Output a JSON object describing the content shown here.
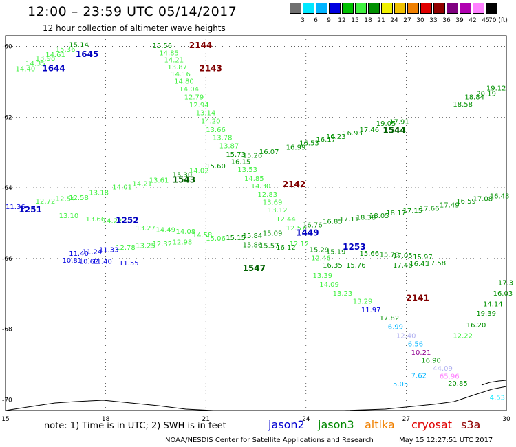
{
  "title": "12:00 – 23:59 UTC 05/14/2017",
  "subtitle": "12 hour collection of altimeter wave heights",
  "legend": {
    "colors": [
      "#707070",
      "#00e8ff",
      "#00b4ff",
      "#0000e0",
      "#00c000",
      "#40f040",
      "#009000",
      "#f0f000",
      "#f0c000",
      "#f08000",
      "#e00000",
      "#900000",
      "#800080",
      "#b000b0",
      "#ff80ff",
      "#000000"
    ],
    "labels": [
      "3",
      "6",
      "9",
      "12",
      "15",
      "18",
      "21",
      "24",
      "27",
      "30",
      "33",
      "36",
      "39",
      "42",
      "45",
      "70 (ft)"
    ]
  },
  "axes": {
    "lat_labels": [
      "-60",
      "-62",
      "-64",
      "-66",
      "-68",
      "-70"
    ],
    "lon_labels": [
      "15",
      "18",
      "21",
      "24",
      "27",
      "30"
    ]
  },
  "note": "note: 1) Time is in UTC; 2) SWH is in feet",
  "satellites": [
    {
      "name": "jason2",
      "color": "#0000d0"
    },
    {
      "name": "jason3",
      "color": "#008800"
    },
    {
      "name": "altika",
      "color": "#f08000"
    },
    {
      "name": "cryosat",
      "color": "#e00000"
    },
    {
      "name": "s3a",
      "color": "#900000"
    }
  ],
  "credit": "NOAA/NESDIS Center for Satellite Applications and Research",
  "credit_date": "May 15 12:27:51 UTC 2017",
  "pass_labels": [
    {
      "text": "1645",
      "lon": 17.1,
      "lat": -60.3,
      "color": "#0000c0"
    },
    {
      "text": "1644",
      "lon": 16.1,
      "lat": -60.7,
      "color": "#0000c0"
    },
    {
      "text": "2144",
      "lon": 20.5,
      "lat": -60.05,
      "color": "#800000"
    },
    {
      "text": "2143",
      "lon": 20.8,
      "lat": -60.7,
      "color": "#800000"
    },
    {
      "text": "1544",
      "lon": 26.3,
      "lat": -62.45,
      "color": "#006000"
    },
    {
      "text": "1543",
      "lon": 20.0,
      "lat": -63.85,
      "color": "#006000"
    },
    {
      "text": "2142",
      "lon": 23.3,
      "lat": -63.98,
      "color": "#800000"
    },
    {
      "text": "1251",
      "lon": 15.4,
      "lat": -64.7,
      "color": "#0000c0"
    },
    {
      "text": "1252",
      "lon": 18.3,
      "lat": -65.0,
      "color": "#0000c0"
    },
    {
      "text": "1449",
      "lon": 23.7,
      "lat": -65.35,
      "color": "#0000c0"
    },
    {
      "text": "1253",
      "lon": 25.1,
      "lat": -65.75,
      "color": "#0000c0"
    },
    {
      "text": "1547",
      "lon": 22.1,
      "lat": -66.35,
      "color": "#006000"
    },
    {
      "text": "2141",
      "lon": 27.0,
      "lat": -67.2,
      "color": "#800000"
    }
  ],
  "swh_values": [
    {
      "text": "15.14",
      "lon": 16.9,
      "lat": -60.02,
      "color": "#009000"
    },
    {
      "text": "15.36",
      "lon": 16.5,
      "lat": -60.15,
      "color": "#40f040"
    },
    {
      "text": "14.61",
      "lon": 16.2,
      "lat": -60.3,
      "color": "#40f040"
    },
    {
      "text": "13.98",
      "lon": 15.9,
      "lat": -60.4,
      "color": "#40f040"
    },
    {
      "text": "14.35",
      "lon": 15.6,
      "lat": -60.55,
      "color": "#40f040"
    },
    {
      "text": "14.40",
      "lon": 15.3,
      "lat": -60.7,
      "color": "#40f040"
    },
    {
      "text": "15.56",
      "lon": 19.4,
      "lat": -60.05,
      "color": "#009000"
    },
    {
      "text": "14.85",
      "lon": 19.6,
      "lat": -60.25,
      "color": "#40f040"
    },
    {
      "text": "14.21",
      "lon": 19.75,
      "lat": -60.45,
      "color": "#40f040"
    },
    {
      "text": "13.87",
      "lon": 19.85,
      "lat": -60.65,
      "color": "#40f040"
    },
    {
      "text": "14.16",
      "lon": 19.95,
      "lat": -60.85,
      "color": "#40f040"
    },
    {
      "text": "14.80",
      "lon": 20.05,
      "lat": -61.05,
      "color": "#40f040"
    },
    {
      "text": "14.04",
      "lon": 20.2,
      "lat": -61.28,
      "color": "#40f040"
    },
    {
      "text": "12.79",
      "lon": 20.35,
      "lat": -61.5,
      "color": "#40f040"
    },
    {
      "text": "12.94",
      "lon": 20.5,
      "lat": -61.72,
      "color": "#40f040"
    },
    {
      "text": "13.14",
      "lon": 20.7,
      "lat": -61.95,
      "color": "#40f040"
    },
    {
      "text": "14.20",
      "lon": 20.85,
      "lat": -62.18,
      "color": "#40f040"
    },
    {
      "text": "13.66",
      "lon": 21.0,
      "lat": -62.42,
      "color": "#40f040"
    },
    {
      "text": "13.78",
      "lon": 21.2,
      "lat": -62.65,
      "color": "#40f040"
    },
    {
      "text": "13.87",
      "lon": 21.4,
      "lat": -62.88,
      "color": "#40f040"
    },
    {
      "text": "15.73",
      "lon": 21.6,
      "lat": -63.12,
      "color": "#009000"
    },
    {
      "text": "16.15",
      "lon": 21.75,
      "lat": -63.33,
      "color": "#009000"
    },
    {
      "text": "13.53",
      "lon": 21.95,
      "lat": -63.55,
      "color": "#40f040"
    },
    {
      "text": "14.85",
      "lon": 22.15,
      "lat": -63.8,
      "color": "#40f040"
    },
    {
      "text": "14.30",
      "lon": 22.35,
      "lat": -64.02,
      "color": "#40f040"
    },
    {
      "text": "12.83",
      "lon": 22.55,
      "lat": -64.25,
      "color": "#40f040"
    },
    {
      "text": "13.69",
      "lon": 22.7,
      "lat": -64.47,
      "color": "#40f040"
    },
    {
      "text": "13.12",
      "lon": 22.85,
      "lat": -64.7,
      "color": "#40f040"
    },
    {
      "text": "12.44",
      "lon": 23.1,
      "lat": -64.95,
      "color": "#40f040"
    },
    {
      "text": "12.57",
      "lon": 23.4,
      "lat": -65.2,
      "color": "#40f040"
    },
    {
      "text": "12.12",
      "lon": 23.5,
      "lat": -65.65,
      "color": "#40f040"
    },
    {
      "text": "12.46",
      "lon": 24.15,
      "lat": -66.05,
      "color": "#40f040"
    },
    {
      "text": "13.39",
      "lon": 24.2,
      "lat": -66.55,
      "color": "#40f040"
    },
    {
      "text": "14.09",
      "lon": 24.4,
      "lat": -66.8,
      "color": "#40f040"
    },
    {
      "text": "13.23",
      "lon": 24.8,
      "lat": -67.05,
      "color": "#40f040"
    },
    {
      "text": "13.29",
      "lon": 25.4,
      "lat": -67.28,
      "color": "#40f040"
    },
    {
      "text": "11.97",
      "lon": 25.65,
      "lat": -67.52,
      "color": "#0000e0"
    },
    {
      "text": "17.82",
      "lon": 26.2,
      "lat": -67.75,
      "color": "#009000"
    },
    {
      "text": "6.99",
      "lon": 26.45,
      "lat": -68.0,
      "color": "#00b4ff"
    },
    {
      "text": "12.40",
      "lon": 26.7,
      "lat": -68.25,
      "color": "#b0b0f0"
    },
    {
      "text": "6.56",
      "lon": 27.05,
      "lat": -68.48,
      "color": "#00b4ff"
    },
    {
      "text": "10.21",
      "lon": 27.15,
      "lat": -68.72,
      "color": "#900090"
    },
    {
      "text": "16.90",
      "lon": 27.45,
      "lat": -68.95,
      "color": "#009000"
    },
    {
      "text": "44.09",
      "lon": 27.8,
      "lat": -69.17,
      "color": "#b0b0f0"
    },
    {
      "text": "7.62",
      "lon": 27.15,
      "lat": -69.38,
      "color": "#00b4ff"
    },
    {
      "text": "65.96",
      "lon": 28.0,
      "lat": -69.4,
      "color": "#ff80ff"
    },
    {
      "text": "5.05",
      "lon": 26.6,
      "lat": -69.62,
      "color": "#00b4ff"
    },
    {
      "text": "20.85",
      "lon": 28.25,
      "lat": -69.6,
      "color": "#009000"
    },
    {
      "text": "4.53",
      "lon": 29.5,
      "lat": -70.0,
      "color": "#00e8ff"
    },
    {
      "text": "12.22",
      "lon": 28.4,
      "lat": -68.25,
      "color": "#40f040"
    },
    {
      "text": "16.20",
      "lon": 28.8,
      "lat": -67.95,
      "color": "#009000"
    },
    {
      "text": "19.39",
      "lon": 29.1,
      "lat": -67.62,
      "color": "#009000"
    },
    {
      "text": "14.14",
      "lon": 29.3,
      "lat": -67.35,
      "color": "#009000"
    },
    {
      "text": "16.03",
      "lon": 29.6,
      "lat": -67.05,
      "color": "#009000"
    },
    {
      "text": "17.3",
      "lon": 29.75,
      "lat": -66.75,
      "color": "#009000"
    },
    {
      "text": "17.91",
      "lon": 26.5,
      "lat": -62.2,
      "color": "#009000"
    },
    {
      "text": "18.58",
      "lon": 28.4,
      "lat": -61.7,
      "color": "#009000"
    },
    {
      "text": "18.84",
      "lon": 28.75,
      "lat": -61.5,
      "color": "#009000"
    },
    {
      "text": "20.19",
      "lon": 29.1,
      "lat": -61.4,
      "color": "#009000"
    },
    {
      "text": "19.12",
      "lon": 29.4,
      "lat": -61.25,
      "color": "#009000"
    },
    {
      "text": "16.99",
      "lon": 23.4,
      "lat": -62.92,
      "color": "#009000"
    },
    {
      "text": "16.53",
      "lon": 23.8,
      "lat": -62.8,
      "color": "#009000"
    },
    {
      "text": "16.17",
      "lon": 24.3,
      "lat": -62.7,
      "color": "#009000"
    },
    {
      "text": "16.23",
      "lon": 24.6,
      "lat": -62.62,
      "color": "#009000"
    },
    {
      "text": "16.93",
      "lon": 25.1,
      "lat": -62.52,
      "color": "#009000"
    },
    {
      "text": "17.46",
      "lon": 25.6,
      "lat": -62.42,
      "color": "#009000"
    },
    {
      "text": "19.05",
      "lon": 26.1,
      "lat": -62.25,
      "color": "#009000"
    },
    {
      "text": "16.07",
      "lon": 22.6,
      "lat": -63.05,
      "color": "#009000"
    },
    {
      "text": "15.26",
      "lon": 22.1,
      "lat": -63.15,
      "color": "#009000"
    },
    {
      "text": "15.60",
      "lon": 21.0,
      "lat": -63.45,
      "color": "#009000"
    },
    {
      "text": "15.30",
      "lon": 20.0,
      "lat": -63.7,
      "color": "#009000"
    },
    {
      "text": "14.02",
      "lon": 20.5,
      "lat": -63.58,
      "color": "#40f040"
    },
    {
      "text": "13.61",
      "lon": 19.3,
      "lat": -63.85,
      "color": "#40f040"
    },
    {
      "text": "14.21",
      "lon": 18.8,
      "lat": -63.95,
      "color": "#40f040"
    },
    {
      "text": "14.01",
      "lon": 18.2,
      "lat": -64.05,
      "color": "#40f040"
    },
    {
      "text": "13.18",
      "lon": 17.5,
      "lat": -64.2,
      "color": "#40f040"
    },
    {
      "text": "12.54",
      "lon": 16.5,
      "lat": -64.38,
      "color": "#40f040"
    },
    {
      "text": "12.58",
      "lon": 16.9,
      "lat": -64.35,
      "color": "#40f040"
    },
    {
      "text": "12.72",
      "lon": 15.9,
      "lat": -64.45,
      "color": "#40f040"
    },
    {
      "text": "11.36",
      "lon": 15.0,
      "lat": -64.6,
      "color": "#0000e0"
    },
    {
      "text": "13.10",
      "lon": 16.6,
      "lat": -64.85,
      "color": "#40f040"
    },
    {
      "text": "13.66",
      "lon": 17.4,
      "lat": -64.95,
      "color": "#40f040"
    },
    {
      "text": "14.22",
      "lon": 17.9,
      "lat": -65.0,
      "color": "#40f040"
    },
    {
      "text": "13.27",
      "lon": 18.9,
      "lat": -65.2,
      "color": "#40f040"
    },
    {
      "text": "14.49",
      "lon": 19.5,
      "lat": -65.25,
      "color": "#40f040"
    },
    {
      "text": "14.08",
      "lon": 20.1,
      "lat": -65.3,
      "color": "#40f040"
    },
    {
      "text": "14.58",
      "lon": 20.6,
      "lat": -65.4,
      "color": "#40f040"
    },
    {
      "text": "15.06",
      "lon": 21.0,
      "lat": -65.5,
      "color": "#40f040"
    },
    {
      "text": "15.15",
      "lon": 21.6,
      "lat": -65.48,
      "color": "#009000"
    },
    {
      "text": "15.84",
      "lon": 22.1,
      "lat": -65.42,
      "color": "#009000"
    },
    {
      "text": "15.09",
      "lon": 22.7,
      "lat": -65.35,
      "color": "#009000"
    },
    {
      "text": "16.76",
      "lon": 23.9,
      "lat": -65.12,
      "color": "#009000"
    },
    {
      "text": "16.85",
      "lon": 24.5,
      "lat": -65.02,
      "color": "#009000"
    },
    {
      "text": "17.11",
      "lon": 25.0,
      "lat": -64.95,
      "color": "#009000"
    },
    {
      "text": "18.38",
      "lon": 25.5,
      "lat": -64.9,
      "color": "#009000"
    },
    {
      "text": "18.05",
      "lon": 25.9,
      "lat": -64.85,
      "color": "#009000"
    },
    {
      "text": "18.17",
      "lon": 26.4,
      "lat": -64.78,
      "color": "#009000"
    },
    {
      "text": "17.15",
      "lon": 26.9,
      "lat": -64.72,
      "color": "#009000"
    },
    {
      "text": "17.66",
      "lon": 27.4,
      "lat": -64.65,
      "color": "#009000"
    },
    {
      "text": "17.49",
      "lon": 28.0,
      "lat": -64.55,
      "color": "#009000"
    },
    {
      "text": "16.59",
      "lon": 28.5,
      "lat": -64.45,
      "color": "#009000"
    },
    {
      "text": "17.08",
      "lon": 29.0,
      "lat": -64.38,
      "color": "#009000"
    },
    {
      "text": "16.48",
      "lon": 29.5,
      "lat": -64.3,
      "color": "#009000"
    },
    {
      "text": "12.98",
      "lon": 20.0,
      "lat": -65.6,
      "color": "#40f040"
    },
    {
      "text": "12.32",
      "lon": 19.4,
      "lat": -65.65,
      "color": "#40f040"
    },
    {
      "text": "13.25",
      "lon": 18.9,
      "lat": -65.7,
      "color": "#40f040"
    },
    {
      "text": "12.78",
      "lon": 18.3,
      "lat": -65.75,
      "color": "#40f040"
    },
    {
      "text": "11.33",
      "lon": 17.8,
      "lat": -65.82,
      "color": "#0000e0"
    },
    {
      "text": "11.24",
      "lon": 17.3,
      "lat": -65.88,
      "color": "#0000e0"
    },
    {
      "text": "11.40",
      "lon": 16.9,
      "lat": -65.92,
      "color": "#0000e0"
    },
    {
      "text": "11.40",
      "lon": 17.6,
      "lat": -66.15,
      "color": "#0000e0"
    },
    {
      "text": "10.62",
      "lon": 17.2,
      "lat": -66.15,
      "color": "#0000e0"
    },
    {
      "text": "10.81",
      "lon": 16.7,
      "lat": -66.12,
      "color": "#0000e0"
    },
    {
      "text": "11.55",
      "lon": 18.4,
      "lat": -66.2,
      "color": "#0000e0"
    },
    {
      "text": "15.86",
      "lon": 22.1,
      "lat": -65.68,
      "color": "#009000"
    },
    {
      "text": "15.57",
      "lon": 22.6,
      "lat": -65.7,
      "color": "#009000"
    },
    {
      "text": "16.12",
      "lon": 23.1,
      "lat": -65.75,
      "color": "#009000"
    },
    {
      "text": "15.29",
      "lon": 24.1,
      "lat": -65.82,
      "color": "#009000"
    },
    {
      "text": "15.19",
      "lon": 24.6,
      "lat": -65.88,
      "color": "#009000"
    },
    {
      "text": "15.66",
      "lon": 25.6,
      "lat": -65.92,
      "color": "#009000"
    },
    {
      "text": "15.78",
      "lon": 26.2,
      "lat": -65.95,
      "color": "#009000"
    },
    {
      "text": "17.05",
      "lon": 26.6,
      "lat": -65.98,
      "color": "#009000"
    },
    {
      "text": "15.97",
      "lon": 27.2,
      "lat": -66.02,
      "color": "#009000"
    },
    {
      "text": "16.35",
      "lon": 24.5,
      "lat": -66.25,
      "color": "#009000"
    },
    {
      "text": "15.76",
      "lon": 25.2,
      "lat": -66.25,
      "color": "#009000"
    },
    {
      "text": "17.46",
      "lon": 26.6,
      "lat": -66.25,
      "color": "#009000"
    },
    {
      "text": "16.41",
      "lon": 27.1,
      "lat": -66.22,
      "color": "#009000"
    },
    {
      "text": "17.58",
      "lon": 27.6,
      "lat": -66.2,
      "color": "#009000"
    }
  ]
}
